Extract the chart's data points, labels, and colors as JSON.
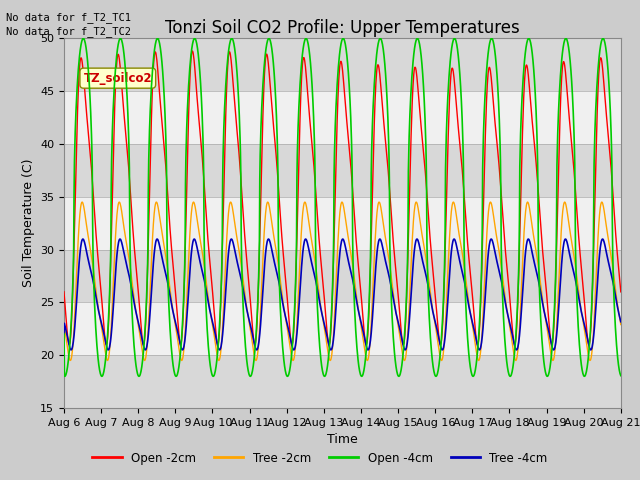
{
  "title": "Tonzi Soil CO2 Profile: Upper Temperatures",
  "xlabel": "Time",
  "ylabel": "Soil Temperature (C)",
  "ylim": [
    15,
    50
  ],
  "xlim_days": [
    0,
    15
  ],
  "no_data_text1": "No data for f_T2_TC1",
  "no_data_text2": "No data for f_T2_TC2",
  "box_label": "TZ_soilco2",
  "x_tick_labels": [
    "Aug 6",
    "Aug 7",
    "Aug 8",
    "Aug 9",
    "Aug 10",
    "Aug 11",
    "Aug 12",
    "Aug 13",
    "Aug 14",
    "Aug 15",
    "Aug 16",
    "Aug 17",
    "Aug 18",
    "Aug 19",
    "Aug 20",
    "Aug 21"
  ],
  "legend_labels": [
    "Open -2cm",
    "Tree -2cm",
    "Open -4cm",
    "Tree -4cm"
  ],
  "line_colors": [
    "#ff0000",
    "#ffa500",
    "#00cc00",
    "#0000bb"
  ],
  "bg_color": "#cccccc",
  "plot_bg_color": "#ffffff",
  "band_colors": [
    "#d8d8d8",
    "#f0f0f0"
  ],
  "title_fontsize": 12,
  "label_fontsize": 9,
  "tick_fontsize": 8,
  "box_label_color": "#cc0000",
  "box_face_color": "#ffffcc",
  "box_edge_color": "#888800"
}
